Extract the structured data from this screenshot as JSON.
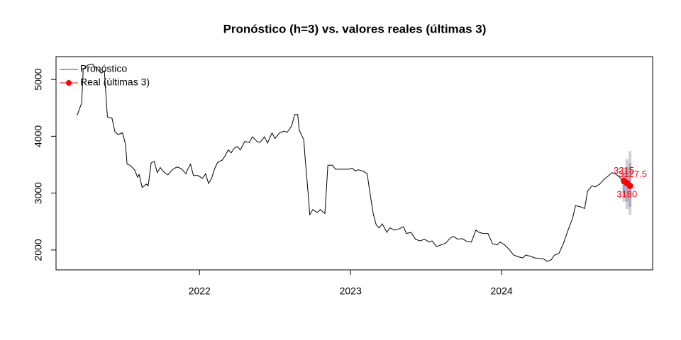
{
  "chart_data": {
    "type": "line",
    "title": "Pronóstico (h=3) vs. valores reales (últimas 3)",
    "color": "#000000",
    "x": [
      2021.19,
      2021.22,
      2021.23,
      2021.26,
      2021.29,
      2021.32,
      2021.35,
      2021.37,
      2021.39,
      2021.42,
      2021.44,
      2021.46,
      2021.49,
      2021.51,
      2021.52,
      2021.54,
      2021.57,
      2021.59,
      2021.6,
      2021.62,
      2021.65,
      2021.66,
      2021.68,
      2021.7,
      2021.72,
      2021.74,
      2021.76,
      2021.79,
      2021.82,
      2021.85,
      2021.88,
      2021.91,
      2021.92,
      2021.94,
      2021.96,
      2021.99,
      2022.02,
      2022.04,
      2022.06,
      2022.08,
      2022.1,
      2022.12,
      2022.15,
      2022.17,
      2022.19,
      2022.21,
      2022.23,
      2022.25,
      2022.27,
      2022.3,
      2022.33,
      2022.35,
      2022.38,
      2022.4,
      2022.43,
      2022.45,
      2022.48,
      2022.5,
      2022.53,
      2022.56,
      2022.58,
      2022.61,
      2022.63,
      2022.65,
      2022.66,
      2022.69,
      2022.7,
      2022.72,
      2022.73,
      2022.75,
      2022.78,
      2022.8,
      2022.83,
      2022.85,
      2022.88,
      2022.9,
      2022.93,
      2022.96,
      2022.99,
      2023.01,
      2023.03,
      2023.05,
      2023.08,
      2023.11,
      2023.13,
      2023.15,
      2023.17,
      2023.19,
      2023.21,
      2023.24,
      2023.26,
      2023.29,
      2023.32,
      2023.35,
      2023.37,
      2023.4,
      2023.43,
      2023.46,
      2023.49,
      2023.52,
      2023.54,
      2023.57,
      2023.6,
      2023.63,
      2023.66,
      2023.68,
      2023.71,
      2023.74,
      2023.77,
      2023.8,
      2023.83,
      2023.85,
      2023.88,
      2023.91,
      2023.94,
      2023.97,
      2023.99,
      2024.02,
      2024.05,
      2024.08,
      2024.11,
      2024.14,
      2024.16,
      2024.19,
      2024.22,
      2024.25,
      2024.28,
      2024.3,
      2024.33,
      2024.35,
      2024.38,
      2024.41,
      2024.44,
      2024.47,
      2024.49,
      2024.52,
      2024.55,
      2024.57,
      2024.6,
      2024.62,
      2024.65,
      2024.68,
      2024.71,
      2024.73,
      2024.76,
      2024.79,
      2024.8
    ],
    "values": [
      4370,
      4590,
      5180,
      5250,
      5270,
      5190,
      5110,
      5150,
      4340,
      4320,
      4080,
      4030,
      4060,
      3860,
      3510,
      3490,
      3410,
      3280,
      3330,
      3100,
      3160,
      3130,
      3530,
      3560,
      3360,
      3450,
      3380,
      3320,
      3410,
      3460,
      3430,
      3340,
      3410,
      3510,
      3310,
      3310,
      3260,
      3340,
      3170,
      3260,
      3430,
      3540,
      3580,
      3660,
      3760,
      3710,
      3790,
      3820,
      3760,
      3910,
      3890,
      3990,
      3910,
      3890,
      3990,
      3880,
      4060,
      3960,
      4060,
      4090,
      4070,
      4180,
      4380,
      4380,
      4110,
      3940,
      3590,
      2960,
      2620,
      2710,
      2660,
      2710,
      2640,
      3490,
      3490,
      3420,
      3420,
      3420,
      3420,
      3440,
      3390,
      3410,
      3390,
      3340,
      2970,
      2640,
      2440,
      2390,
      2460,
      2310,
      2390,
      2350,
      2370,
      2410,
      2290,
      2310,
      2190,
      2160,
      2190,
      2140,
      2160,
      2060,
      2090,
      2120,
      2210,
      2240,
      2190,
      2200,
      2150,
      2140,
      2350,
      2310,
      2290,
      2290,
      2110,
      2090,
      2140,
      2090,
      2010,
      1910,
      1880,
      1860,
      1910,
      1890,
      1860,
      1850,
      1840,
      1800,
      1830,
      1910,
      1940,
      2120,
      2350,
      2560,
      2780,
      2760,
      2730,
      3040,
      3130,
      3110,
      3160,
      3250,
      3310,
      3360,
      3330,
      3260,
      3160
    ],
    "forecast": {
      "name": "Pronóstico",
      "color": "#7b7bd6",
      "x": [
        2024.81,
        2024.83,
        2024.85
      ],
      "values": [
        3150,
        3140,
        3130
      ],
      "lower95": [
        2850,
        2720,
        2620
      ],
      "upper95": [
        3450,
        3600,
        3740
      ],
      "lower80": [
        2950,
        2850,
        2760
      ],
      "upper80": [
        3350,
        3450,
        3530
      ]
    },
    "actual": {
      "name": "Real (últimas 3)",
      "color": "#ff0000",
      "x": [
        2024.81,
        2024.83,
        2024.85
      ],
      "values": [
        3215,
        3180,
        3127.5
      ]
    },
    "xlim": [
      2021.05,
      2025.0
    ],
    "ylim": [
      1650,
      5400
    ],
    "xticks": [
      2022,
      2023,
      2024
    ],
    "yticks": [
      2000,
      3000,
      4000,
      5000
    ],
    "legend": "topleft"
  }
}
